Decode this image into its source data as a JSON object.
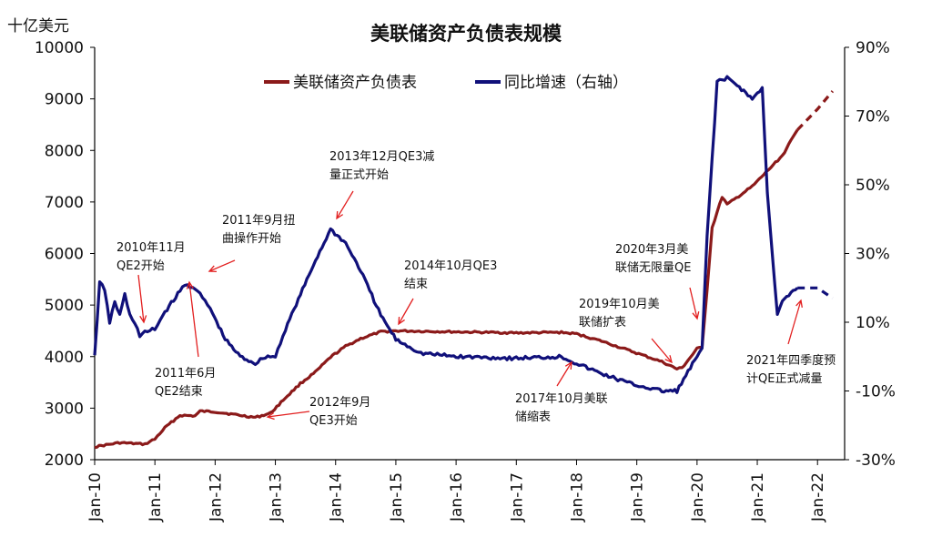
{
  "chart_data": {
    "type": "line",
    "title": "美联储资产负债表规模",
    "y_unit_label": "十亿美元",
    "x_ticks": [
      "Jan-10",
      "Jan-11",
      "Jan-12",
      "Jan-13",
      "Jan-14",
      "Jan-15",
      "Jan-16",
      "Jan-17",
      "Jan-18",
      "Jan-19",
      "Jan-20",
      "Jan-21",
      "Jan-22"
    ],
    "left_axis": {
      "min": 2000,
      "max": 10000,
      "ticks": [
        2000,
        3000,
        4000,
        5000,
        6000,
        7000,
        8000,
        9000,
        10000
      ]
    },
    "right_axis": {
      "min": -30,
      "max": 90,
      "ticks": [
        "90%",
        "70%",
        "50%",
        "30%",
        "10%",
        "-10%",
        "-30%"
      ],
      "tick_values": [
        90,
        70,
        50,
        30,
        10,
        -10,
        -30
      ]
    },
    "grid": false,
    "legend_position": "top",
    "series": [
      {
        "name": "美联储资产负债表",
        "axis": "left",
        "color": "#8B1A1A",
        "points": [
          [
            "2010-01",
            2250
          ],
          [
            "2010-06",
            2330
          ],
          [
            "2010-11",
            2300
          ],
          [
            "2011-01",
            2400
          ],
          [
            "2011-03",
            2620
          ],
          [
            "2011-06",
            2860
          ],
          [
            "2011-09",
            2850
          ],
          [
            "2011-10",
            2940
          ],
          [
            "2012-01",
            2930
          ],
          [
            "2012-06",
            2860
          ],
          [
            "2012-09",
            2820
          ],
          [
            "2012-12",
            2900
          ],
          [
            "2013-03",
            3200
          ],
          [
            "2013-06",
            3480
          ],
          [
            "2013-09",
            3700
          ],
          [
            "2013-12",
            3990
          ],
          [
            "2014-03",
            4200
          ],
          [
            "2014-06",
            4350
          ],
          [
            "2014-10",
            4480
          ],
          [
            "2015-01",
            4500
          ],
          [
            "2016-01",
            4480
          ],
          [
            "2017-01",
            4460
          ],
          [
            "2017-10",
            4470
          ],
          [
            "2018-01",
            4440
          ],
          [
            "2018-06",
            4300
          ],
          [
            "2018-12",
            4100
          ],
          [
            "2019-06",
            3900
          ],
          [
            "2019-09",
            3760
          ],
          [
            "2019-10",
            3780
          ],
          [
            "2020-01",
            4150
          ],
          [
            "2020-02",
            4180
          ],
          [
            "2020-03",
            5300
          ],
          [
            "2020-04",
            6500
          ],
          [
            "2020-06",
            7100
          ],
          [
            "2020-07",
            6950
          ],
          [
            "2020-12",
            7300
          ],
          [
            "2021-06",
            7900
          ],
          [
            "2021-09",
            8400
          ]
        ],
        "projected_points": [
          [
            "2021-09",
            8400
          ],
          [
            "2022-01",
            8800
          ],
          [
            "2022-04",
            9150
          ]
        ]
      },
      {
        "name": "同比增速（右轴）",
        "axis": "right",
        "color": "#10107A",
        "points": [
          [
            "2010-01",
            0
          ],
          [
            "2010-02",
            22
          ],
          [
            "2010-03",
            19
          ],
          [
            "2010-04",
            10
          ],
          [
            "2010-05",
            16
          ],
          [
            "2010-06",
            12
          ],
          [
            "2010-07",
            18
          ],
          [
            "2010-08",
            12
          ],
          [
            "2010-09",
            10
          ],
          [
            "2010-10",
            6
          ],
          [
            "2010-11",
            7
          ],
          [
            "2011-01",
            8
          ],
          [
            "2011-03",
            13
          ],
          [
            "2011-06",
            19
          ],
          [
            "2011-07",
            21
          ],
          [
            "2011-09",
            20
          ],
          [
            "2011-10",
            18
          ],
          [
            "2011-12",
            14
          ],
          [
            "2012-03",
            5
          ],
          [
            "2012-06",
            0
          ],
          [
            "2012-09",
            -2
          ],
          [
            "2012-11",
            0
          ],
          [
            "2013-01",
            0
          ],
          [
            "2013-03",
            8
          ],
          [
            "2013-06",
            18
          ],
          [
            "2013-09",
            28
          ],
          [
            "2013-12",
            37
          ],
          [
            "2014-03",
            33
          ],
          [
            "2014-06",
            25
          ],
          [
            "2014-10",
            12
          ],
          [
            "2015-01",
            5
          ],
          [
            "2015-06",
            1
          ],
          [
            "2016-01",
            0
          ],
          [
            "2017-01",
            -0.5
          ],
          [
            "2017-10",
            0
          ],
          [
            "2018-01",
            -2
          ],
          [
            "2018-06",
            -5
          ],
          [
            "2018-12",
            -8
          ],
          [
            "2019-06",
            -10
          ],
          [
            "2019-09",
            -10
          ],
          [
            "2020-01",
            0
          ],
          [
            "2020-02",
            2
          ],
          [
            "2020-03",
            35
          ],
          [
            "2020-05",
            80
          ],
          [
            "2020-07",
            81
          ],
          [
            "2020-09",
            79
          ],
          [
            "2020-12",
            75
          ],
          [
            "2021-02",
            78
          ],
          [
            "2021-03",
            48
          ],
          [
            "2021-05",
            12
          ],
          [
            "2021-06",
            16
          ],
          [
            "2021-09",
            20
          ]
        ],
        "projected_points": [
          [
            "2021-09",
            20
          ],
          [
            "2022-01",
            20
          ],
          [
            "2022-04",
            17
          ]
        ]
      }
    ],
    "annotations": [
      {
        "lines": [
          "2010年11月",
          "QE2开始"
        ],
        "date": "2010-11"
      },
      {
        "lines": [
          "2011年6月",
          "QE2结束"
        ],
        "date": "2011-06"
      },
      {
        "lines": [
          "2011年9月扭",
          "曲操作开始"
        ],
        "date": "2011-09"
      },
      {
        "lines": [
          "2012年9月",
          "QE3开始"
        ],
        "date": "2012-09"
      },
      {
        "lines": [
          "2013年12月QE3减",
          "量正式开始"
        ],
        "date": "2013-12"
      },
      {
        "lines": [
          "2014年10月QE3",
          "结束"
        ],
        "date": "2014-10"
      },
      {
        "lines": [
          "2017年10月美联",
          "储缩表"
        ],
        "date": "2017-10"
      },
      {
        "lines": [
          "2019年10月美",
          "联储扩表"
        ],
        "date": "2019-10"
      },
      {
        "lines": [
          "2020年3月美",
          "联储无限量QE"
        ],
        "date": "2020-03"
      },
      {
        "lines": [
          "2021年四季度预",
          "计QE正式减量"
        ],
        "date": "2021-10"
      }
    ]
  }
}
